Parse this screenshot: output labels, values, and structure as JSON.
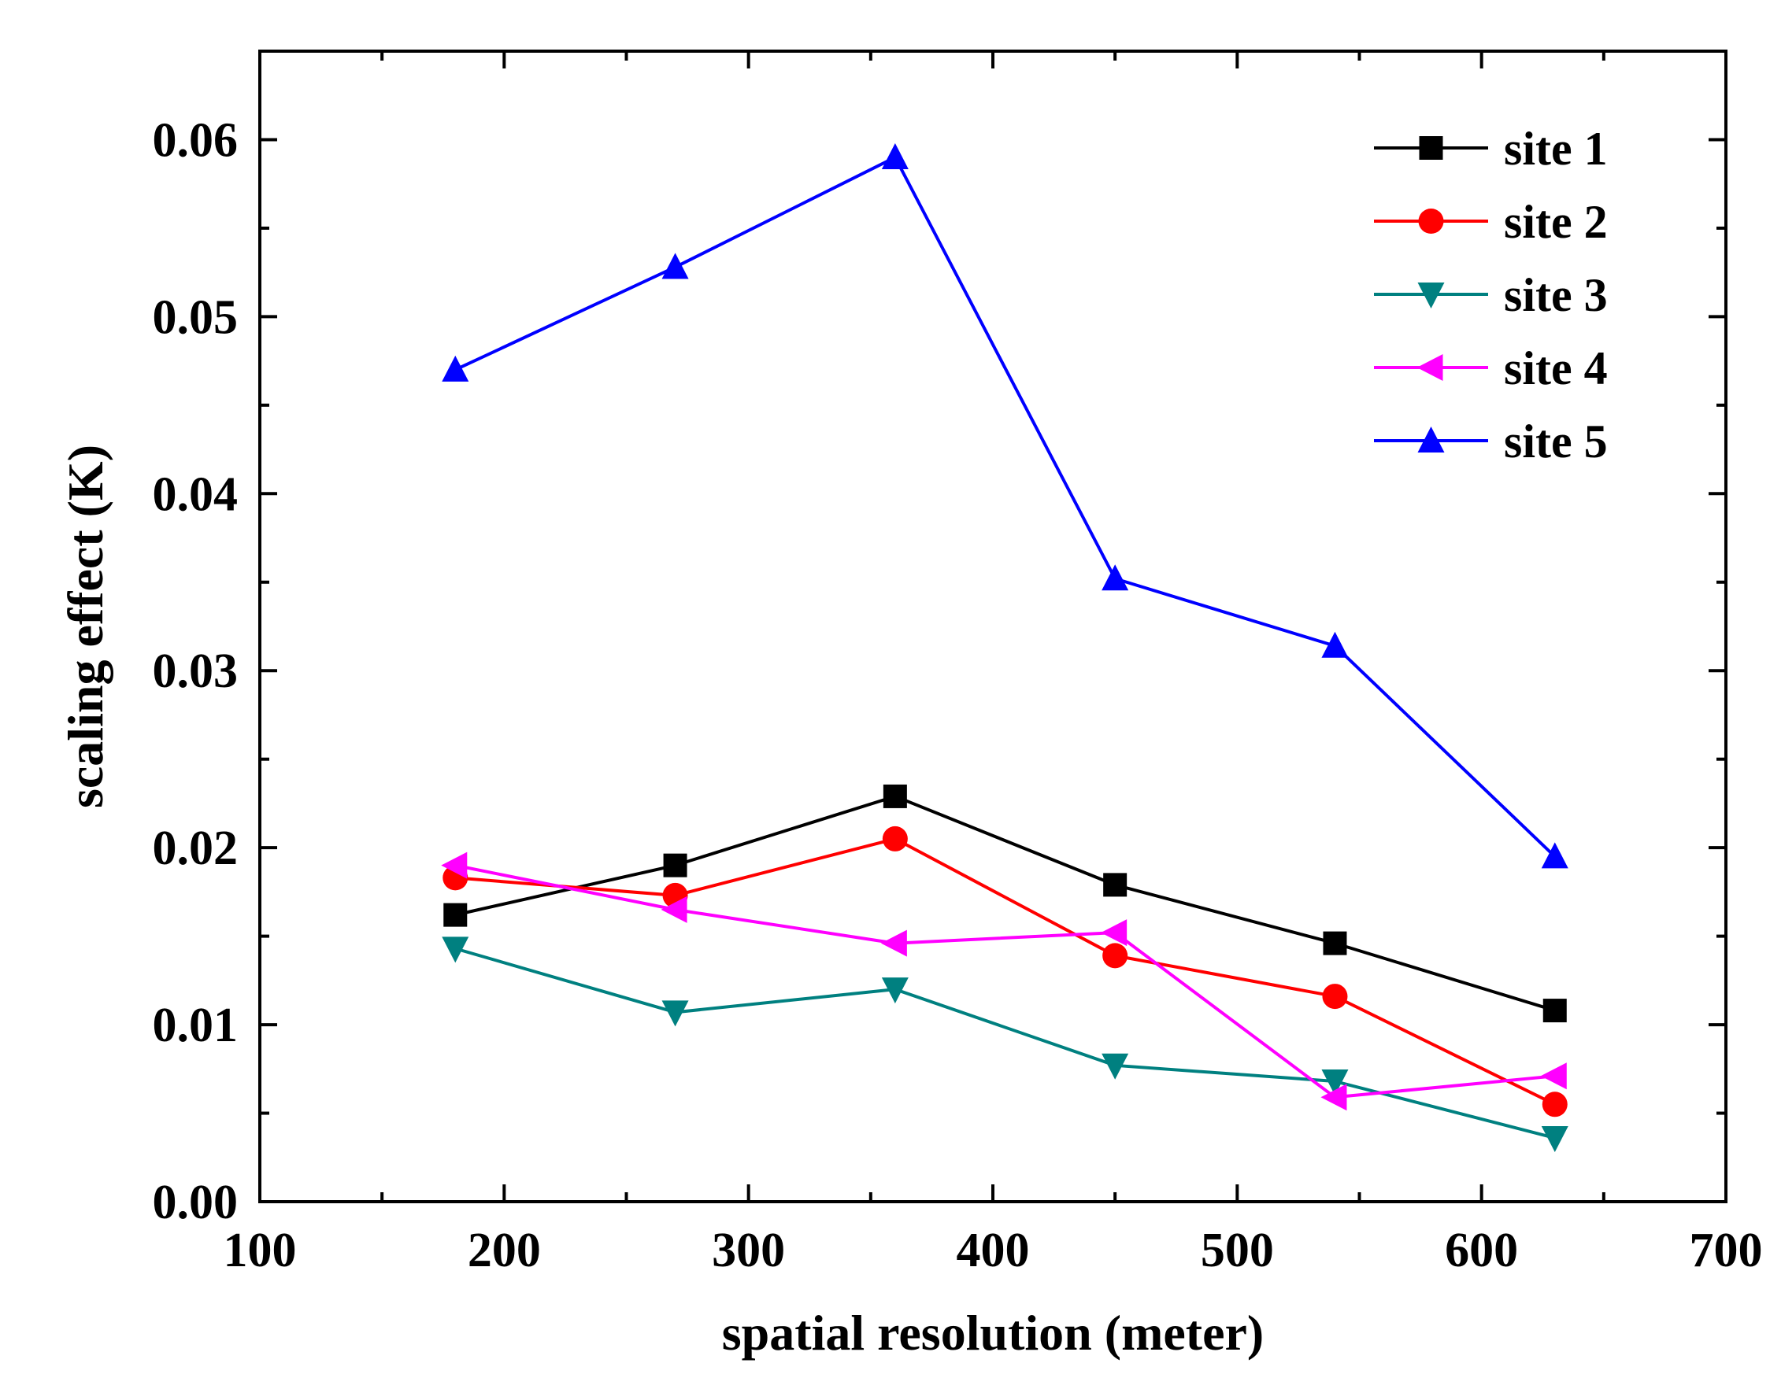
{
  "chart_data": {
    "type": "line",
    "title": "",
    "xlabel": "spatial resolution (meter)",
    "ylabel": "scaling effect (K)",
    "xlim": [
      100,
      700
    ],
    "ylim": [
      0.0,
      0.065
    ],
    "xticks": [
      100,
      200,
      300,
      400,
      500,
      600,
      700
    ],
    "xtick_labels": [
      "100",
      "200",
      "300",
      "400",
      "500",
      "600",
      "700"
    ],
    "yticks": [
      0.0,
      0.01,
      0.02,
      0.03,
      0.04,
      0.05,
      0.06
    ],
    "ytick_labels": [
      "0.00",
      "0.01",
      "0.02",
      "0.03",
      "0.04",
      "0.05",
      "0.06"
    ],
    "grid": false,
    "legend_position": "top-right",
    "x": [
      180,
      270,
      360,
      450,
      540,
      630
    ],
    "series": [
      {
        "name": "site 1",
        "color": "#000000",
        "marker": "square",
        "values": [
          0.0162,
          0.019,
          0.0229,
          0.0179,
          0.0146,
          0.0108
        ]
      },
      {
        "name": "site 2",
        "color": "#ff0000",
        "marker": "circle",
        "values": [
          0.0183,
          0.0173,
          0.0205,
          0.0139,
          0.0116,
          0.0055
        ]
      },
      {
        "name": "site 3",
        "color": "#008080",
        "marker": "triangle-down",
        "values": [
          0.0143,
          0.0107,
          0.012,
          0.0077,
          0.0068,
          0.0036
        ]
      },
      {
        "name": "site 4",
        "color": "#ff00ff",
        "marker": "triangle-left",
        "values": [
          0.019,
          0.0165,
          0.0146,
          0.0152,
          0.0059,
          0.0071
        ]
      },
      {
        "name": "site 5",
        "color": "#0000ff",
        "marker": "triangle-up",
        "values": [
          0.047,
          0.0528,
          0.059,
          0.0352,
          0.0314,
          0.0195
        ]
      }
    ]
  }
}
